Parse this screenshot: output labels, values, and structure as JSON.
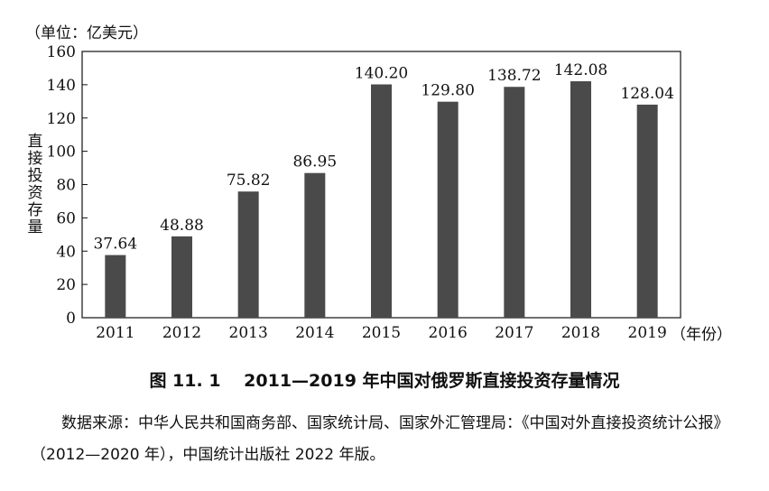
{
  "chart_data": {
    "type": "bar",
    "categories": [
      "2011",
      "2012",
      "2013",
      "2014",
      "2015",
      "2016",
      "2017",
      "2018",
      "2019"
    ],
    "values": [
      37.64,
      48.88,
      75.82,
      86.95,
      140.2,
      129.8,
      138.72,
      142.08,
      128.04
    ],
    "value_labels": [
      "37.64",
      "48.88",
      "75.82",
      "86.95",
      "140.20",
      "129.80",
      "138.72",
      "142.08",
      "128.04"
    ],
    "y_ticks": [
      0,
      20,
      40,
      60,
      80,
      100,
      120,
      140,
      160
    ],
    "ylim": [
      0,
      160
    ],
    "unit_label": "（单位：亿美元）",
    "ylabel": "直接投资存量",
    "xlabel": "（年份）",
    "bar_color": "#4a4a4a",
    "grid": false
  },
  "caption": "图 11. 1　 2011—2019 年中国对俄罗斯直接投资存量情况",
  "source": "数据来源：中华人民共和国商务部、国家统计局、国家外汇管理局：《中国对外直接投资统计公报》（2012—2020 年），中国统计出版社 2022 年版。"
}
